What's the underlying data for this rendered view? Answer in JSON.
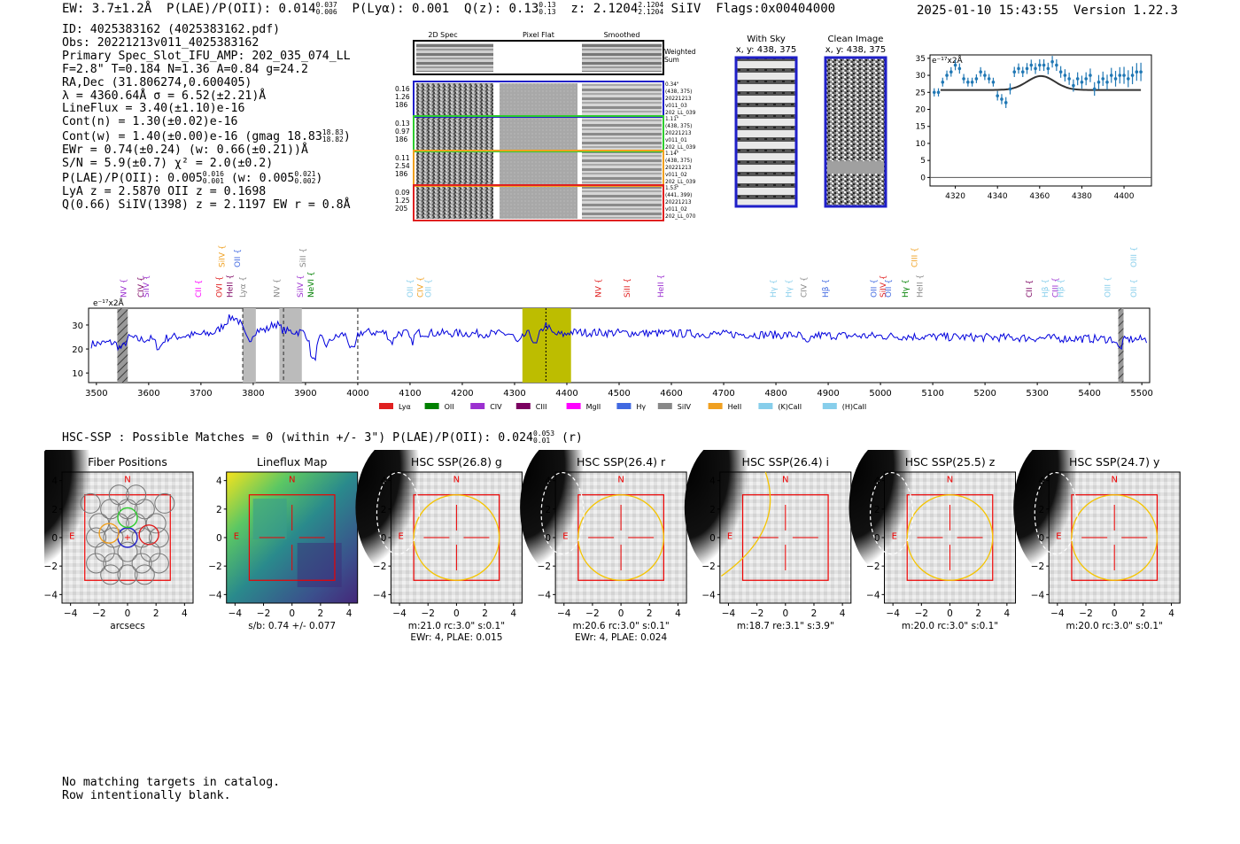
{
  "header": {
    "ew_label": "EW: 3.7±1.2Å",
    "plae_label": "P(LAE)/P(OII): 0.014",
    "plae_sup": "0.037",
    "plae_sub": "0.006",
    "plya_label": "P(Lyα): 0.001",
    "qz_label": "Q(z): 0.13",
    "qz_sup": "0.13",
    "qz_sub": "0.13",
    "z_label": "z: 2.1204",
    "z_sup": "2.1204",
    "z_sub": "2.1204",
    "line_id": "SiIV",
    "flags": "Flags:0x00404000",
    "datetime": "2025-01-10 15:43:55",
    "version": "Version 1.22.3"
  },
  "info": {
    "id": "ID: 4025383162 (4025383162.pdf)",
    "obs": "Obs: 20221213v011_4025383162",
    "slot": "Primary Spec_Slot_IFU_AMP: 202_035_074_LL",
    "params": "F=2.8\"  T=0.184  N=1.36  A=0.84  g=24.2",
    "radec": "RA,Dec (31.806274,0.600405)",
    "lambda": "λ = 4360.64Å  σ = 6.52(±2.21)Å",
    "lineflux": "LineFlux = 3.40(±1.10)e-16",
    "contn": "Cont(n) = 1.30(±0.02)e-16",
    "contw": "Cont(w) = 1.40(±0.00)e-16 (gmag 18.83",
    "contw_sup": "18.83",
    "contw_sub": "18.82",
    "ewr": "EWr = 0.74(±0.24) (w: 0.66(±0.21))Å",
    "sn": "S/N = 5.9(±0.7)  χ² = 2.0(±0.2)",
    "plae": "P(LAE)/P(OII): 0.005",
    "plae_sup": "0.016",
    "plae_sub": "0.001",
    "plae_w": "(w: 0.005",
    "plae_w_sup": "0.021",
    "plae_w_sub": "0.002",
    "lya": "LyA z = 2.5870  OII z = 0.1698",
    "q": "Q(0.66) SiIV(1398) z = 2.1197  EW r = 0.8Å"
  },
  "cutouts": {
    "col_2d": "2D Spec",
    "col_flat": "Pixel Flat",
    "col_smooth": "Smoothed",
    "weighted": "Weighted Sum",
    "rows": [
      {
        "a": "0.16",
        "b": "1.26",
        "c": "186",
        "r1": "0.34\"",
        "r2": "(438, 375)",
        "r3": "20221213",
        "r4": "v011_03",
        "r5": "202_LL_039",
        "color": "#1f1fc8"
      },
      {
        "a": "0.13",
        "b": "0.97",
        "c": "186",
        "r1": "1.11\"",
        "r2": "(438, 375)",
        "r3": "20221213",
        "r4": "v011_01",
        "r5": "202_LL_039",
        "color": "#2ecc2e"
      },
      {
        "a": "0.11",
        "b": "2.54",
        "c": "186",
        "r1": "1.14\"",
        "r2": "(438, 375)",
        "r3": "20221213",
        "r4": "v011_02",
        "r5": "202_LL_039",
        "color": "#f0a020"
      },
      {
        "a": "0.09",
        "b": "1.25",
        "c": "205",
        "r1": "1.53\"",
        "r2": "(441, 399)",
        "r3": "20221213",
        "r4": "v011_02",
        "r5": "202_LL_070",
        "color": "#e02020"
      }
    ],
    "with_sky": "With Sky",
    "with_sky_xy": "x, y: 438, 375",
    "clean": "Clean Image",
    "clean_xy": "x, y: 438, 375"
  },
  "zoom_chart": {
    "type": "scatter",
    "ylabel": "e⁻¹⁷x2Å",
    "xlim": [
      4308,
      4413
    ],
    "ylim": [
      -2.5,
      36
    ],
    "xticks": [
      4320,
      4340,
      4360,
      4380,
      4400
    ],
    "yticks": [
      0,
      5,
      10,
      15,
      20,
      25,
      30,
      35
    ],
    "points_x": [
      4310,
      4312,
      4314,
      4316,
      4318,
      4320,
      4322,
      4324,
      4326,
      4328,
      4330,
      4332,
      4334,
      4336,
      4338,
      4340,
      4342,
      4344,
      4346,
      4348,
      4350,
      4352,
      4354,
      4356,
      4358,
      4360,
      4362,
      4364,
      4366,
      4368,
      4370,
      4372,
      4374,
      4376,
      4378,
      4380,
      4382,
      4384,
      4386,
      4388,
      4390,
      4392,
      4394,
      4396,
      4398,
      4400,
      4402,
      4404,
      4406,
      4408
    ],
    "points_y": [
      25,
      25,
      28,
      30,
      31,
      33,
      32,
      29,
      28,
      28,
      29,
      31,
      30,
      29,
      28,
      24,
      23,
      22,
      26,
      31,
      32,
      31,
      32,
      33,
      32,
      33,
      33,
      32,
      34,
      33,
      31,
      30,
      29,
      27,
      29,
      28,
      29,
      30,
      26,
      28,
      29,
      28,
      30,
      29,
      30,
      30,
      29,
      30,
      31,
      31
    ],
    "errors": [
      1.2,
      1.2,
      1.3,
      1.4,
      1.4,
      1.5,
      1.5,
      1.4,
      1.3,
      1.3,
      1.3,
      1.4,
      1.4,
      1.4,
      1.3,
      1.4,
      1.5,
      1.6,
      1.6,
      1.5,
      1.5,
      1.5,
      1.6,
      1.6,
      1.6,
      1.7,
      1.7,
      1.7,
      1.7,
      1.7,
      1.7,
      1.8,
      1.8,
      1.8,
      1.9,
      1.9,
      1.9,
      2.0,
      2.0,
      2.1,
      2.1,
      2.2,
      2.2,
      2.3,
      2.4,
      2.5,
      2.5,
      2.6,
      2.6,
      2.7
    ],
    "fit": {
      "continuum": 25.7,
      "amplitude": 4.1,
      "center": 4360.64,
      "sigma": 6.52
    }
  },
  "spectrum": {
    "type": "line",
    "ylabel": "e⁻¹⁷x2Å",
    "xlim": [
      3485,
      5515
    ],
    "ylim": [
      6,
      37
    ],
    "xticks": [
      3500,
      3600,
      3700,
      3800,
      3900,
      4000,
      4100,
      4200,
      4300,
      4400,
      4500,
      4600,
      4700,
      4800,
      4900,
      5000,
      5100,
      5200,
      5300,
      5400,
      5500
    ],
    "yticks": [
      10,
      20,
      30
    ],
    "grey_bands": [
      [
        3780,
        3805
      ],
      [
        3850,
        3893
      ]
    ],
    "hatched_bands": [
      [
        3540,
        3560
      ],
      [
        5455,
        5465
      ]
    ],
    "yellow_band": [
      4315,
      4408
    ],
    "dashed_lines": [
      3780,
      3858,
      4000
    ],
    "line_marker": 4360,
    "lines_top": [
      {
        "x": 3557,
        "label": "NV",
        "color": "#9b30d0"
      },
      {
        "x": 3590,
        "label": "CIV",
        "color": "#7b0060"
      },
      {
        "x": 3600,
        "label": "SiIV",
        "color": "#9b30d0"
      },
      {
        "x": 3700,
        "label": "CII",
        "color": "#ff00ff"
      },
      {
        "x": 3740,
        "label": "OVI",
        "color": "#e02020"
      },
      {
        "x": 3760,
        "label": "HeII",
        "color": "#7b0060"
      },
      {
        "x": 3785,
        "label": "Lyα",
        "color": "#888888"
      },
      {
        "x": 3850,
        "label": "NV",
        "color": "#888888"
      },
      {
        "x": 3895,
        "label": "SiIV",
        "color": "#9b30d0"
      },
      {
        "x": 3915,
        "label": "NeVI",
        "color": "#008000"
      },
      {
        "x": 4105,
        "label": "OII",
        "color": "#87ceeb"
      },
      {
        "x": 4125,
        "label": "CIV",
        "color": "#f0a020"
      },
      {
        "x": 4140,
        "label": "OII",
        "color": "#87ceeb"
      },
      {
        "x": 4465,
        "label": "NV",
        "color": "#e02020"
      },
      {
        "x": 4520,
        "label": "SiII",
        "color": "#e02020"
      },
      {
        "x": 4585,
        "label": "HeII",
        "color": "#9b30d0"
      },
      {
        "x": 4800,
        "label": "Hγ",
        "color": "#87ceeb"
      },
      {
        "x": 4830,
        "label": "Hγ",
        "color": "#87ceeb"
      },
      {
        "x": 4858,
        "label": "CIV",
        "color": "#888888"
      },
      {
        "x": 4900,
        "label": "Hβ",
        "color": "#4169e1"
      },
      {
        "x": 4992,
        "label": "OII",
        "color": "#4169e1"
      },
      {
        "x": 5010,
        "label": "SiIV",
        "color": "#e02020"
      },
      {
        "x": 5020,
        "label": "OII",
        "color": "#4169e1"
      },
      {
        "x": 5052,
        "label": "Hγ",
        "color": "#008000"
      },
      {
        "x": 5080,
        "label": "HeII",
        "color": "#888888"
      },
      {
        "x": 5290,
        "label": "CII",
        "color": "#7b0060"
      },
      {
        "x": 5320,
        "label": "Hβ",
        "color": "#87ceeb"
      },
      {
        "x": 5340,
        "label": "CIII",
        "color": "#9b30d0"
      },
      {
        "x": 5350,
        "label": "Hβ",
        "color": "#87ceeb"
      },
      {
        "x": 5440,
        "label": "OIII",
        "color": "#87ceeb"
      },
      {
        "x": 5490,
        "label": "OII",
        "color": "#87ceeb"
      }
    ],
    "lines_high": [
      {
        "x": 3745,
        "label": "SiIV",
        "color": "#f0a020"
      },
      {
        "x": 3775,
        "label": "OII",
        "color": "#4169e1"
      },
      {
        "x": 3900,
        "label": "SiII",
        "color": "#888888"
      },
      {
        "x": 5070,
        "label": "CIII",
        "color": "#f0a020"
      },
      {
        "x": 5490,
        "label": "OIII",
        "color": "#87ceeb"
      }
    ],
    "legend": [
      {
        "label": "Lyα",
        "color": "#e02020"
      },
      {
        "label": "OII",
        "color": "#008000"
      },
      {
        "label": "CIV",
        "color": "#9b30d0"
      },
      {
        "label": "CIII",
        "color": "#7b0060"
      },
      {
        "label": "MgII",
        "color": "#ff00ff"
      },
      {
        "label": "Hγ",
        "color": "#4169e1"
      },
      {
        "label": "SiIV",
        "color": "#888888"
      },
      {
        "label": "HeII",
        "color": "#f0a020"
      },
      {
        "label": "(K)CaII",
        "color": "#87ceeb"
      },
      {
        "label": "(H)CaII",
        "color": "#87ceeb"
      }
    ]
  },
  "hsc": {
    "summary": "HSC-SSP : Possible Matches = 0 (within +/- 3\")  P(LAE)/P(OII): 0.024",
    "summary_sup": "0.053",
    "summary_sub": "0.01",
    "summary_band": "(r)",
    "north": "N",
    "east": "E",
    "ticks": [
      "4",
      "2",
      "0",
      "−2",
      "−4"
    ],
    "xticks": [
      "−4",
      "−2",
      "0",
      "2",
      "4"
    ],
    "panels": [
      {
        "title": "Fiber Positions",
        "caption1": "arcsecs",
        "caption2": ""
      },
      {
        "title": "Lineflux Map",
        "caption1": "s/b: 0.74 +/- 0.077",
        "caption2": ""
      },
      {
        "title": "HSC SSP(26.8) g",
        "caption1": "m:21.0 rc:3.0\"  s:0.1\"",
        "caption2": "EWr: 4, PLAE: 0.015"
      },
      {
        "title": "HSC SSP(26.4) r",
        "caption1": "m:20.6 rc:3.0\"  s:0.1\"",
        "caption2": "EWr: 4, PLAE: 0.024"
      },
      {
        "title": "HSC SSP(26.4) i",
        "caption1": "m:18.7  re:3.1\"  s:3.9\"",
        "caption2": ""
      },
      {
        "title": "HSC SSP(25.5) z",
        "caption1": "m:20.0 rc:3.0\"  s:0.1\"",
        "caption2": ""
      },
      {
        "title": "HSC SSP(24.7) y",
        "caption1": "m:20.0 rc:3.0\"  s:0.1\"",
        "caption2": ""
      }
    ]
  },
  "footer": {
    "line1": "No matching targets in catalog.",
    "line2": "Row intentionally blank."
  }
}
